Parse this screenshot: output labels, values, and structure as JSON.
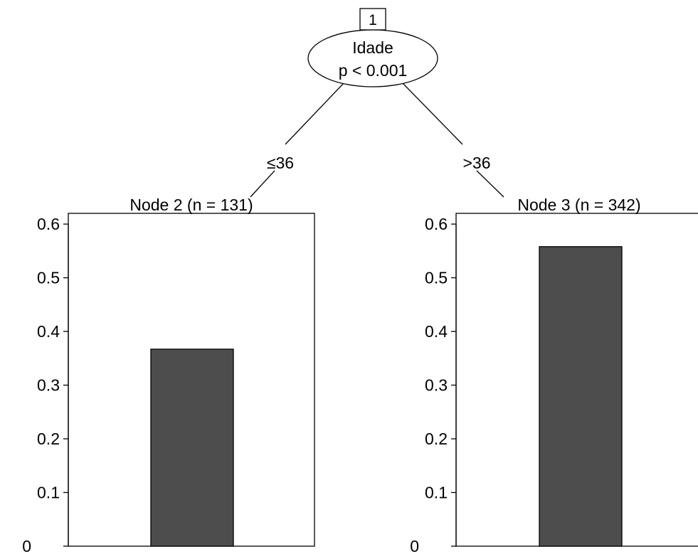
{
  "tree": {
    "root_node": {
      "id": "1",
      "variable": "Idade",
      "pvalue": "p < 0.001"
    },
    "edges": [
      {
        "label": "≤ 36",
        "symbol": "≤",
        "value": "36"
      },
      {
        "label": "> 36",
        "symbol": ">",
        "value": "36"
      }
    ]
  },
  "chart_data": [
    {
      "type": "bar",
      "title": "Node 2 (n = 131)",
      "values": [
        0.367
      ],
      "ylim": [
        0,
        0.62
      ],
      "yticks": [
        "0",
        "0.1",
        "0.2",
        "0.3",
        "0.4",
        "0.5",
        "0.6"
      ],
      "bar_color": "#4d4d4d"
    },
    {
      "type": "bar",
      "title": "Node 3 (n = 342)",
      "values": [
        0.558
      ],
      "ylim": [
        0,
        0.62
      ],
      "yticks": [
        "0",
        "0.1",
        "0.2",
        "0.3",
        "0.4",
        "0.5",
        "0.6"
      ],
      "bar_color": "#4d4d4d"
    }
  ]
}
